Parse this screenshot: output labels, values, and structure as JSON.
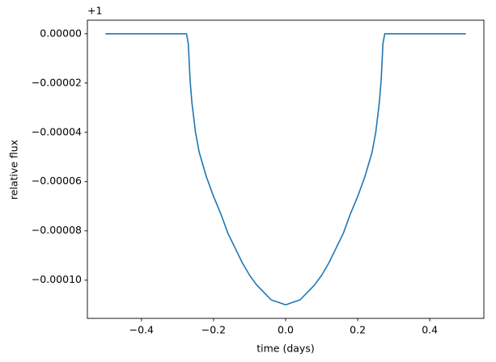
{
  "chart_data": {
    "type": "line",
    "xlabel": "time (days)",
    "ylabel": "relative flux",
    "y_offset_label": "+1",
    "x": [
      -0.5,
      -0.4,
      -0.3,
      -0.275,
      -0.27,
      -0.265,
      -0.26,
      -0.25,
      -0.24,
      -0.22,
      -0.2,
      -0.18,
      -0.16,
      -0.14,
      -0.12,
      -0.1,
      -0.08,
      -0.06,
      -0.04,
      -0.02,
      0,
      0.02,
      0.04,
      0.06,
      0.08,
      0.1,
      0.12,
      0.14,
      0.16,
      0.18,
      0.2,
      0.22,
      0.24,
      0.25,
      0.26,
      0.265,
      0.27,
      0.275,
      0.3,
      0.4,
      0.5
    ],
    "series": [
      {
        "name": "flux",
        "color": "#1f77b4",
        "values": [
          0,
          0,
          0,
          0,
          -4e-06,
          -1.9e-05,
          -2.8e-05,
          -4e-05,
          -4.8e-05,
          -5.8e-05,
          -6.6e-05,
          -7.3e-05,
          -8.1e-05,
          -8.7e-05,
          -9.3e-05,
          -9.8e-05,
          -0.000102,
          -0.000105,
          -0.000108,
          -0.000109,
          -0.00011,
          -0.000109,
          -0.000108,
          -0.000105,
          -0.000102,
          -9.8e-05,
          -9.3e-05,
          -8.7e-05,
          -8.1e-05,
          -7.3e-05,
          -6.6e-05,
          -5.8e-05,
          -4.8e-05,
          -4e-05,
          -2.8e-05,
          -1.9e-05,
          -4e-06,
          0,
          0,
          0,
          0
        ]
      }
    ],
    "xlim": [
      -0.55,
      0.55
    ],
    "xticks": [
      {
        "value": -0.4,
        "label": "−0.4"
      },
      {
        "value": -0.2,
        "label": "−0.2"
      },
      {
        "value": 0,
        "label": "0.0"
      },
      0.2,
      0.4
    ],
    "ylim": [
      -0.0001155,
      5.5e-06
    ],
    "yticks": [
      {
        "value": 0,
        "label": "0.00000"
      },
      {
        "value": -2e-05,
        "label": "−0.00002"
      },
      {
        "value": -4e-05,
        "label": "−0.00004"
      },
      {
        "value": -6e-05,
        "label": "−0.00006"
      },
      {
        "value": -8e-05,
        "label": "−0.00008"
      },
      {
        "value": -0.0001,
        "label": "−0.00010"
      }
    ]
  }
}
